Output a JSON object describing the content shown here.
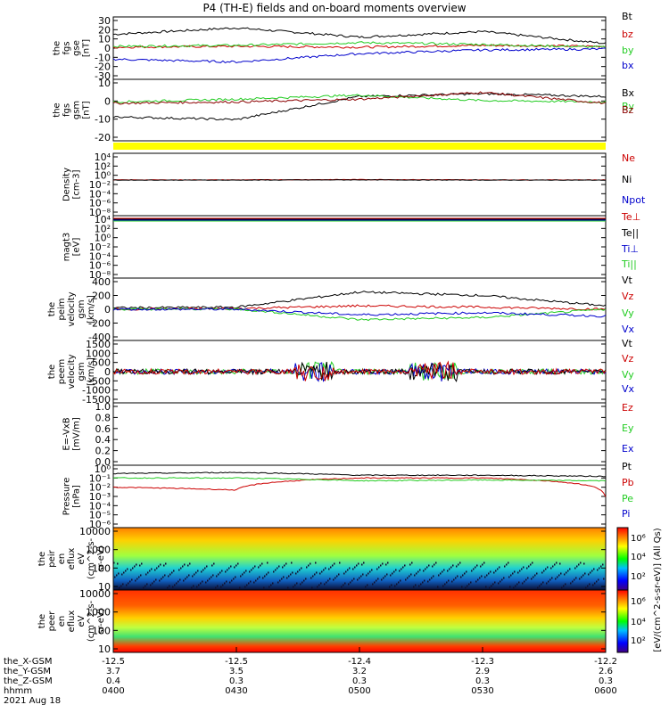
{
  "title": "P4 (TH-E) fields and on-board moments overview",
  "colors": {
    "black": "#000000",
    "red": "#cc0000",
    "green": "#22cc22",
    "blue": "#0000cc",
    "brown": "#8b0000",
    "yellow": "#ffff00"
  },
  "panels": [
    {
      "id": "fgs-gse",
      "ylabel_lines": [
        "the",
        "fgs",
        "gse",
        "[nT]"
      ],
      "yticks": [
        "30",
        "20",
        "10",
        "0",
        "-10",
        "-20",
        "-30"
      ],
      "legend": [
        {
          "text": "Bt",
          "color": "black"
        },
        {
          "text": "bz",
          "color": "red"
        },
        {
          "text": "by",
          "color": "green"
        },
        {
          "text": "bx",
          "color": "blue"
        }
      ]
    },
    {
      "id": "fgs-gsm",
      "ylabel_lines": [
        "the",
        "fgs",
        "gsm",
        "[nT]"
      ],
      "yticks": [
        "10",
        "0",
        "-10",
        "-20"
      ],
      "legend": [
        {
          "text": "Bx",
          "color": "black"
        },
        {
          "text": "By",
          "color": "green"
        },
        {
          "text": "Bz",
          "color": "brown"
        }
      ]
    },
    {
      "id": "density",
      "ylabel_lines": [
        "Density",
        "[cm-3]"
      ],
      "yticks": [
        "10⁴",
        "10²",
        "10⁰",
        "10⁻²",
        "10⁻⁴",
        "10⁻⁶",
        "10⁻⁸"
      ],
      "legend": [
        {
          "text": "Ne",
          "color": "red"
        },
        {
          "text": "Ni",
          "color": "black"
        },
        {
          "text": "Npot",
          "color": "blue"
        }
      ]
    },
    {
      "id": "temperature",
      "ylabel_lines": [
        "magt3",
        "[eV]"
      ],
      "yticks": [
        "10⁴",
        "10²",
        "10⁰",
        "10⁻²",
        "10⁻⁴",
        "10⁻⁶",
        "10⁻⁸"
      ],
      "legend": [
        {
          "text": "Te⊥",
          "color": "red"
        },
        {
          "text": "Te||",
          "color": "black"
        },
        {
          "text": "Ti⊥",
          "color": "blue"
        },
        {
          "text": "Ti||",
          "color": "green"
        }
      ]
    },
    {
      "id": "peim-velocity",
      "ylabel_lines": [
        "the",
        "peim",
        "velocity",
        "gsm",
        "[km/s]"
      ],
      "yticks": [
        "400",
        "200",
        "0",
        "-200",
        "-400"
      ],
      "legend": [
        {
          "text": "Vt",
          "color": "black"
        },
        {
          "text": "Vz",
          "color": "red"
        },
        {
          "text": "Vy",
          "color": "green"
        },
        {
          "text": "Vx",
          "color": "blue"
        }
      ]
    },
    {
      "id": "peem-velocity",
      "ylabel_lines": [
        "the",
        "peem",
        "velocity",
        "gsm",
        "[km/s]"
      ],
      "yticks": [
        "1500",
        "1000",
        "500",
        "0",
        "-500",
        "-1000",
        "-1500"
      ],
      "legend": [
        {
          "text": "Vt",
          "color": "black"
        },
        {
          "text": "Vz",
          "color": "red"
        },
        {
          "text": "Vy",
          "color": "green"
        },
        {
          "text": "Vx",
          "color": "blue"
        }
      ]
    },
    {
      "id": "efield",
      "ylabel_lines": [
        "E=-VxB",
        "[mV/m]"
      ],
      "yticks": [
        "1.0",
        "0.8",
        "0.6",
        "0.4",
        "0.2",
        "0.0"
      ],
      "legend": [
        {
          "text": "Ez",
          "color": "red"
        },
        {
          "text": "Ey",
          "color": "green"
        },
        {
          "text": "Ex",
          "color": "blue"
        }
      ]
    },
    {
      "id": "pressure",
      "ylabel_lines": [
        "Pressure",
        "[nPa]"
      ],
      "yticks": [
        "10⁰",
        "10⁻¹",
        "10⁻²",
        "10⁻³",
        "10⁻⁴",
        "10⁻⁵",
        "10⁻⁶"
      ],
      "legend": [
        {
          "text": "Pt",
          "color": "black"
        },
        {
          "text": "Pb",
          "color": "red"
        },
        {
          "text": "Pe",
          "color": "green"
        },
        {
          "text": "Pi",
          "color": "blue"
        }
      ]
    },
    {
      "id": "peir-spectrogram",
      "ylabel_lines": [
        "the",
        "peir",
        "en",
        "eflux",
        "eV",
        "(cm^2-s-",
        "sr-eV)"
      ],
      "yticks": [
        "10000",
        "1000",
        "100",
        "10"
      ],
      "legend": []
    },
    {
      "id": "peer-spectrogram",
      "ylabel_lines": [
        "the",
        "peer",
        "en",
        "eflux",
        "eV",
        "(cm^2-s-",
        "sr-eV)"
      ],
      "yticks": [
        "10000",
        "1000",
        "100",
        "10"
      ],
      "legend": []
    }
  ],
  "colorbar": {
    "label": "[eV/(cm^2-s-sr-eV)] (All Qs)",
    "ticks": [
      "10⁶",
      "10⁴",
      "10²",
      "10⁶",
      "10⁴",
      "10²"
    ]
  },
  "xaxis": {
    "rows": [
      {
        "label": "the_X-GSM",
        "values": [
          "-12.5",
          "-12.5",
          "-12.4",
          "-12.3",
          "-12.2"
        ]
      },
      {
        "label": "the_Y-GSM",
        "values": [
          "3.7",
          "3.5",
          "3.2",
          "2.9",
          "2.6"
        ]
      },
      {
        "label": "the_Z-GSM",
        "values": [
          "0.4",
          "0.3",
          "0.3",
          "0.3",
          "0.3"
        ]
      },
      {
        "label": "hhmm",
        "values": [
          "0400",
          "0430",
          "0500",
          "0530",
          "0600"
        ]
      }
    ],
    "date": "2021 Aug 18"
  },
  "chart_data": [
    {
      "type": "line",
      "x": [
        "0400",
        "0430",
        "0500",
        "0530",
        "0600"
      ],
      "xlabel": "hhmm",
      "ylabel": "the fgs gse [nT]",
      "ylim": [
        -30,
        30
      ],
      "series": [
        {
          "name": "Bt",
          "values": [
            15,
            22,
            12,
            18,
            5
          ]
        },
        {
          "name": "bz",
          "values": [
            1,
            2,
            1,
            3,
            2
          ]
        },
        {
          "name": "by",
          "values": [
            2,
            3,
            6,
            4,
            1
          ]
        },
        {
          "name": "bx",
          "values": [
            -12,
            -15,
            -6,
            -2,
            -1
          ]
        }
      ]
    },
    {
      "type": "line",
      "x": [
        "0400",
        "0430",
        "0500",
        "0530",
        "0600"
      ],
      "ylabel": "the fgs gsm [nT]",
      "ylim": [
        -25,
        15
      ],
      "series": [
        {
          "name": "Bx",
          "values": [
            -10,
            -12,
            5,
            7,
            5
          ]
        },
        {
          "name": "By",
          "values": [
            1,
            3,
            6,
            2,
            1
          ]
        },
        {
          "name": "Bz",
          "values": [
            0,
            1,
            3,
            8,
            0
          ]
        }
      ]
    },
    {
      "type": "line",
      "x": [
        "0400",
        "0430",
        "0500",
        "0530",
        "0600"
      ],
      "ylabel": "Density [cm-3]",
      "ylim": [
        1e-08,
        10000.0
      ],
      "series": [
        {
          "name": "Ne",
          "values": [
            0.1,
            0.1,
            0.12,
            0.1,
            0.1
          ]
        },
        {
          "name": "Ni",
          "values": [
            0.09,
            0.09,
            0.1,
            0.09,
            0.09
          ]
        }
      ]
    },
    {
      "type": "line",
      "x": [
        "0400",
        "0430",
        "0500",
        "0530",
        "0600"
      ],
      "ylabel": "the peim velocity gsm [km/s]",
      "ylim": [
        -400,
        400
      ],
      "series": [
        {
          "name": "Vt",
          "values": [
            20,
            30,
            250,
            200,
            50
          ]
        },
        {
          "name": "Vz",
          "values": [
            0,
            10,
            50,
            30,
            0
          ]
        },
        {
          "name": "Vy",
          "values": [
            0,
            5,
            -150,
            -120,
            0
          ]
        },
        {
          "name": "Vx",
          "values": [
            0,
            0,
            -80,
            -50,
            -100
          ]
        }
      ]
    },
    {
      "type": "line",
      "x": [
        "0400",
        "0430",
        "0500",
        "0530",
        "0600"
      ],
      "ylabel": "Pressure [nPa]",
      "ylim": [
        1e-06,
        1
      ],
      "series": [
        {
          "name": "Pt",
          "values": [
            0.3,
            0.4,
            0.2,
            0.2,
            0.15
          ]
        },
        {
          "name": "Pb",
          "values": [
            0.01,
            0.005,
            0.1,
            0.1,
            0.001
          ]
        },
        {
          "name": "Pe",
          "values": [
            0.1,
            0.1,
            0.05,
            0.06,
            0.05
          ]
        }
      ]
    }
  ]
}
